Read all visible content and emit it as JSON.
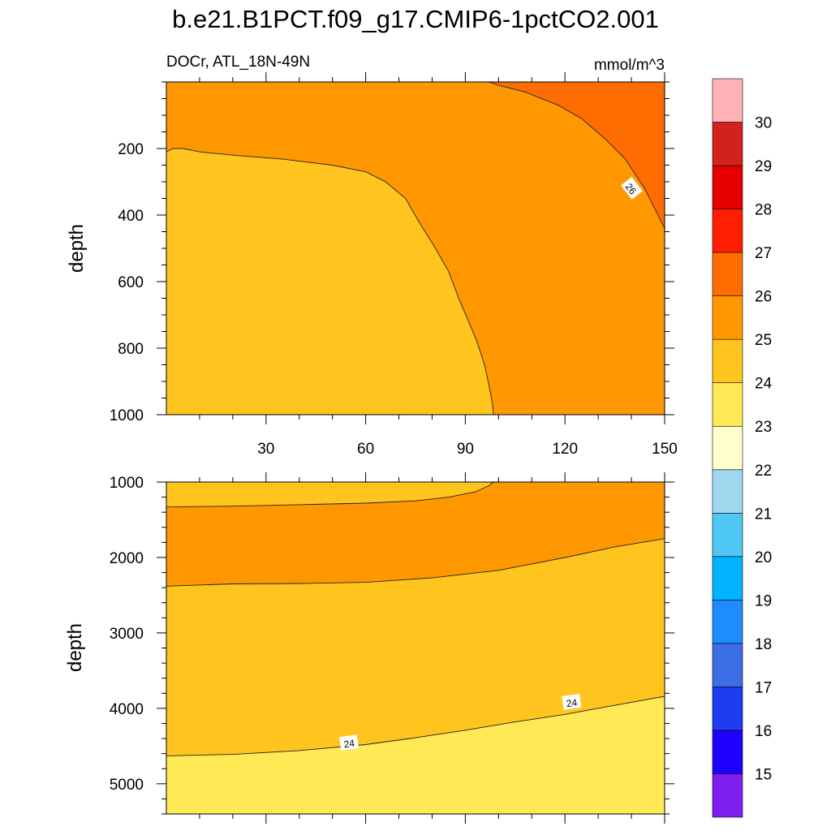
{
  "title": "b.e21.B1PCT.f09_g17.CMIP6-1pctCO2.001",
  "chart_data": [
    {
      "type": "contour",
      "panel": "upper",
      "variable_label": "DOCr, ATL_18N-49N",
      "units": "mmol/m^3",
      "ylabel": "depth",
      "xlabel": "",
      "xlim": [
        0,
        150
      ],
      "ylim": [
        0,
        1000
      ],
      "y_inverted": true,
      "x_ticks": [
        30,
        60,
        90,
        120,
        150
      ],
      "x_tick_labels": [
        "30",
        "60",
        "90",
        "120",
        "150"
      ],
      "y_ticks": [
        200,
        400,
        600,
        800,
        1000
      ],
      "y_tick_labels": [
        "200",
        "400",
        "600",
        "800",
        "1000"
      ],
      "background_band": "25-26",
      "contour_lines": [
        {
          "level": 24,
          "x": [
            0,
            2,
            5,
            10,
            20,
            35,
            50,
            60,
            66,
            72,
            76,
            81,
            85,
            88,
            91,
            93.5,
            95.8,
            97.3,
            98.2,
            98.5
          ],
          "y": [
            210,
            200,
            200,
            210,
            220,
            232,
            250,
            270,
            300,
            350,
            420,
            500,
            570,
            650,
            720,
            780,
            850,
            920,
            970,
            1000
          ]
        },
        {
          "level": 26,
          "x": [
            97,
            100,
            108,
            118,
            125,
            132,
            138,
            144,
            150
          ],
          "y": [
            0,
            10,
            30,
            70,
            110,
            170,
            230,
            320,
            440
          ]
        }
      ],
      "filled_regions": [
        {
          "band": "24-25",
          "bounded_by": "level 24 contour, surface-left side"
        },
        {
          "band": "26-27",
          "bounded_by": "level 26 contour, upper-right corner"
        }
      ],
      "contour_labels": [
        {
          "text": "26",
          "x": 140,
          "y": 320
        }
      ]
    },
    {
      "type": "contour",
      "panel": "lower",
      "ylabel": "depth",
      "xlabel": "",
      "xlim": [
        0,
        150
      ],
      "ylim": [
        1000,
        5400
      ],
      "y_inverted": true,
      "x_ticks": [
        30,
        60,
        90,
        120,
        150
      ],
      "y_ticks": [
        1000,
        2000,
        3000,
        4000,
        5000
      ],
      "y_tick_labels": [
        "1000",
        "2000",
        "3000",
        "4000",
        "5000"
      ],
      "background_band": "24-25",
      "contour_lines": [
        {
          "level": 25,
          "x": [
            0,
            20,
            40,
            60,
            75,
            85,
            93,
            97,
            98.5
          ],
          "y": [
            1330,
            1320,
            1300,
            1280,
            1250,
            1200,
            1130,
            1050,
            1000
          ]
        },
        {
          "level": 25,
          "x": [
            0,
            20,
            40,
            60,
            80,
            100,
            120,
            135,
            150
          ],
          "y": [
            2380,
            2350,
            2345,
            2330,
            2270,
            2170,
            2000,
            1860,
            1750
          ]
        },
        {
          "level": 24,
          "x": [
            0,
            20,
            40,
            60,
            75,
            90,
            105,
            120,
            135,
            150
          ],
          "y": [
            4630,
            4610,
            4560,
            4480,
            4390,
            4290,
            4180,
            4080,
            3960,
            3840
          ]
        }
      ],
      "filled_regions": [
        {
          "band": "25-26",
          "bounded_by": "between level 25 contours"
        },
        {
          "band": "23-24",
          "bounded_by": "below level 24 contour"
        }
      ],
      "contour_labels": [
        {
          "text": "24",
          "x": 55,
          "y": 4460
        },
        {
          "text": "24",
          "x": 122,
          "y": 3920
        }
      ]
    }
  ],
  "colorbar": {
    "labels": [
      "15",
      "16",
      "17",
      "18",
      "19",
      "20",
      "21",
      "22",
      "23",
      "24",
      "25",
      "26",
      "27",
      "28",
      "29",
      "30"
    ],
    "colors": [
      "#7e1ff0",
      "#1f00ff",
      "#1e3cf0",
      "#3c6ee6",
      "#1e8cff",
      "#00b4ff",
      "#4fc8f5",
      "#a0d7ef",
      "#ffffcc",
      "#ffe955",
      "#ffc41d",
      "#ff9800",
      "#ff6d00",
      "#ff1e00",
      "#e60000",
      "#d2221c",
      "#ffb3b8"
    ]
  }
}
